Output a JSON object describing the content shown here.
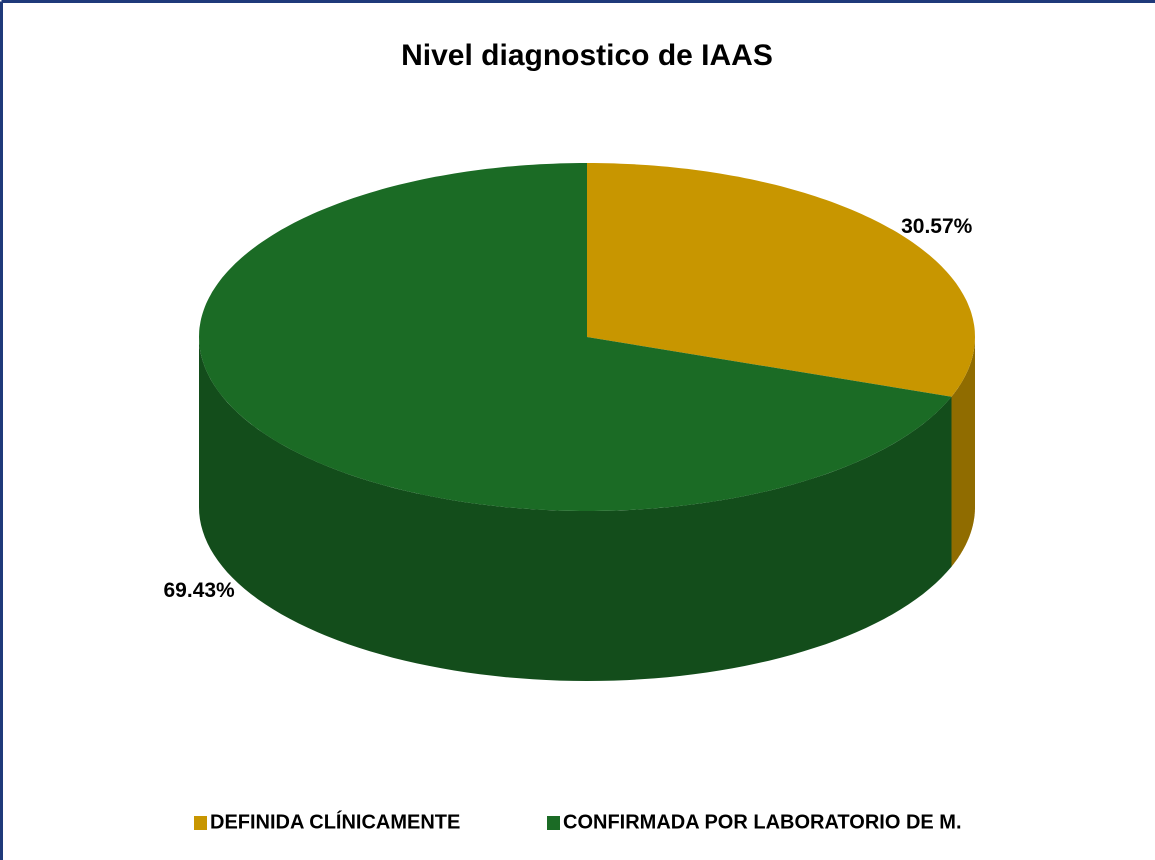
{
  "chart_data": {
    "type": "pie3d",
    "title": "Nivel diagnostico de IAAS",
    "categories": [
      "DEFINIDA CLÍNICAMENTE",
      "CONFIRMADA POR LABORATORIO DE M."
    ],
    "values": [
      30.57,
      69.43
    ],
    "value_labels": [
      "30.57%",
      "69.43%"
    ],
    "colors": [
      "#c89600",
      "#1b6b25"
    ],
    "legend": "bottom"
  }
}
